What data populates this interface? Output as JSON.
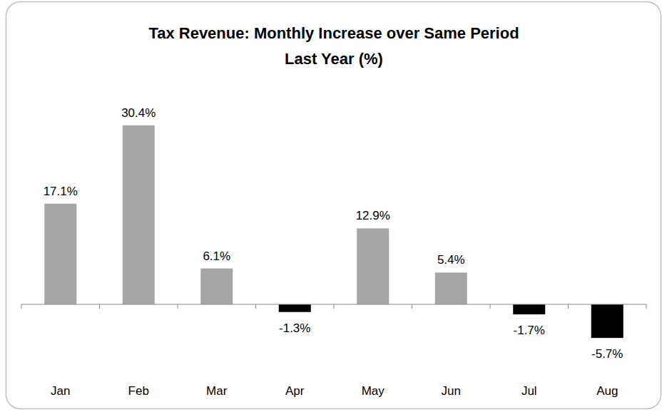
{
  "chart_data": {
    "type": "bar",
    "title": "Tax Revenue:  Monthly Increase over Same Period\nLast Year (%)",
    "categories": [
      "Jan",
      "Feb",
      "Mar",
      "Apr",
      "May",
      "Jun",
      "Jul",
      "Aug"
    ],
    "values": [
      17.1,
      30.4,
      6.1,
      -1.3,
      12.9,
      5.4,
      -1.7,
      -5.7
    ],
    "value_labels": [
      "17.1%",
      "30.4%",
      "6.1%",
      "-1.3%",
      "12.9%",
      "5.4%",
      "-1.7%",
      "-5.7%"
    ],
    "colors": [
      "#a6a6a6",
      "#a6a6a6",
      "#a6a6a6",
      "#000000",
      "#a6a6a6",
      "#a6a6a6",
      "#000000",
      "#000000"
    ],
    "ylim": [
      -10,
      36
    ],
    "data_labels": true,
    "tick_labels": "x",
    "grid": false
  }
}
